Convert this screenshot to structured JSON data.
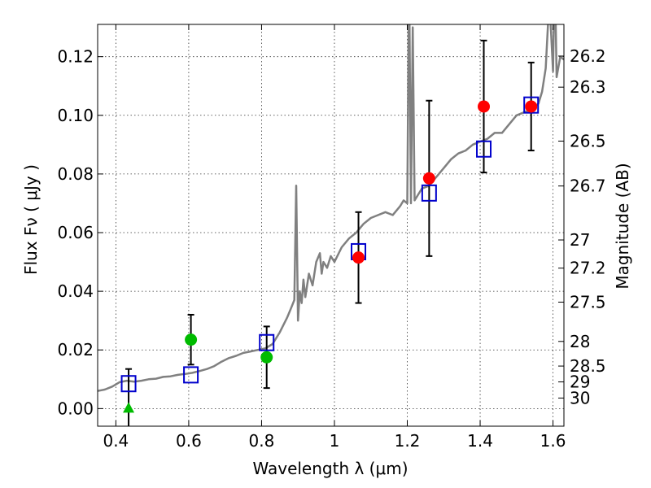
{
  "chart_data": {
    "type": "scatter",
    "title": "",
    "xlabel": "Wavelength  λ (μm)",
    "ylabel": "Flux  Fν  ( μJy )",
    "y2label": "Magnitude (AB)",
    "xlim": [
      0.35,
      1.63
    ],
    "ylim": [
      -0.006,
      0.131
    ],
    "x_ticks": [
      0.4,
      0.6,
      0.8,
      1.0,
      1.2,
      1.4,
      1.6
    ],
    "x_tick_labels": [
      "0.4",
      "0.6",
      "0.8",
      "1",
      "1.2",
      "1.4",
      "1.6"
    ],
    "y_ticks": [
      0.0,
      0.02,
      0.04,
      0.06,
      0.08,
      0.1,
      0.12
    ],
    "y_tick_labels": [
      "0.00",
      "0.02",
      "0.04",
      "0.06",
      "0.08",
      "0.10",
      "0.12"
    ],
    "mag_ticks": [
      {
        "label": "26.2",
        "flux": 0.1202
      },
      {
        "label": "26.3",
        "flux": 0.1096
      },
      {
        "label": "26.5",
        "flux": 0.0912
      },
      {
        "label": "26.7",
        "flux": 0.0759
      },
      {
        "label": "27",
        "flux": 0.0575
      },
      {
        "label": "27.2",
        "flux": 0.0479
      },
      {
        "label": "27.5",
        "flux": 0.0363
      },
      {
        "label": "28",
        "flux": 0.0229
      },
      {
        "label": "28.5",
        "flux": 0.0145
      },
      {
        "label": "29",
        "flux": 0.0091
      },
      {
        "label": "30",
        "flux": 0.0036
      }
    ],
    "grid": true,
    "colors": {
      "spectrum": "#808080",
      "model": "#0000cc",
      "obs_red": "#ff0000",
      "obs_green": "#00bb00",
      "errorbar": "#000000",
      "upper_limit": "#00bb00"
    },
    "series": [
      {
        "name": "model spectrum",
        "type": "line",
        "x": [
          0.35,
          0.37,
          0.39,
          0.41,
          0.43,
          0.45,
          0.47,
          0.49,
          0.51,
          0.53,
          0.55,
          0.57,
          0.59,
          0.61,
          0.63,
          0.65,
          0.67,
          0.69,
          0.71,
          0.73,
          0.75,
          0.77,
          0.79,
          0.81,
          0.83,
          0.85,
          0.87,
          0.88,
          0.89,
          0.895,
          0.9,
          0.905,
          0.91,
          0.915,
          0.92,
          0.93,
          0.94,
          0.95,
          0.96,
          0.965,
          0.97,
          0.98,
          0.99,
          1.0,
          1.02,
          1.04,
          1.06,
          1.08,
          1.1,
          1.12,
          1.14,
          1.16,
          1.18,
          1.19,
          1.2,
          1.205,
          1.21,
          1.215,
          1.22,
          1.24,
          1.26,
          1.28,
          1.3,
          1.32,
          1.34,
          1.36,
          1.38,
          1.4,
          1.42,
          1.44,
          1.46,
          1.48,
          1.5,
          1.52,
          1.54,
          1.56,
          1.57,
          1.58,
          1.59,
          1.6,
          1.605,
          1.61,
          1.62,
          1.63
        ],
        "y": [
          0.006,
          0.0065,
          0.0075,
          0.009,
          0.0095,
          0.0092,
          0.0095,
          0.01,
          0.0102,
          0.0108,
          0.011,
          0.0115,
          0.0118,
          0.0122,
          0.0128,
          0.0135,
          0.0145,
          0.016,
          0.0172,
          0.018,
          0.019,
          0.0195,
          0.02,
          0.0205,
          0.022,
          0.026,
          0.031,
          0.034,
          0.037,
          0.076,
          0.03,
          0.04,
          0.036,
          0.044,
          0.038,
          0.046,
          0.042,
          0.05,
          0.053,
          0.046,
          0.05,
          0.048,
          0.052,
          0.05,
          0.055,
          0.058,
          0.06,
          0.063,
          0.065,
          0.066,
          0.067,
          0.066,
          0.069,
          0.071,
          0.07,
          0.15,
          0.07,
          0.13,
          0.071,
          0.075,
          0.076,
          0.079,
          0.082,
          0.085,
          0.087,
          0.088,
          0.09,
          0.091,
          0.092,
          0.094,
          0.094,
          0.097,
          0.1,
          0.101,
          0.102,
          0.104,
          0.108,
          0.116,
          0.14,
          0.115,
          0.15,
          0.113,
          0.12,
          0.119
        ]
      },
      {
        "name": "model photometry",
        "type": "scatter",
        "marker": "open-square",
        "x": [
          0.435,
          0.606,
          0.814,
          1.066,
          1.26,
          1.41,
          1.54
        ],
        "y": [
          0.0085,
          0.0115,
          0.0225,
          0.0535,
          0.0735,
          0.0885,
          0.1035
        ]
      },
      {
        "name": "observed detections",
        "type": "errorbar",
        "marker": "circle",
        "x": [
          0.606,
          0.814,
          1.066,
          1.26,
          1.41,
          1.54
        ],
        "y": [
          0.0235,
          0.0175,
          0.0515,
          0.0785,
          0.103,
          0.103
        ],
        "yerr": [
          0.0085,
          0.0105,
          0.0155,
          0.0265,
          0.0225,
          0.015
        ],
        "marker_colors": [
          "#00bb00",
          "#00bb00",
          "#ff0000",
          "#ff0000",
          "#ff0000",
          "#ff0000"
        ]
      },
      {
        "name": "upper limit",
        "type": "errorbar",
        "marker": "triangle",
        "x": [
          0.435
        ],
        "y": [
          0.0
        ],
        "yerr": [
          0.0135
        ]
      }
    ]
  }
}
